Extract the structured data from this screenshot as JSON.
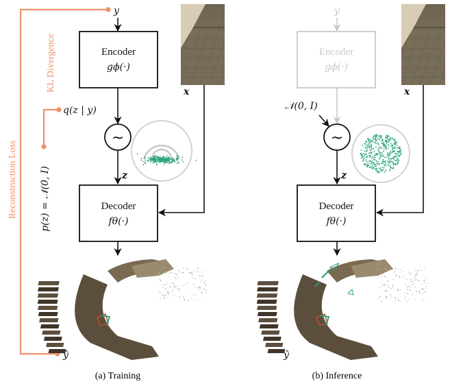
{
  "colors": {
    "orange": "#f0906a",
    "gray": "#c8c8c8",
    "green": "#2aa37a",
    "black": "#111111"
  },
  "training": {
    "caption": "(a) Training",
    "encoder_title": "Encoder",
    "encoder_func": "gϕ(·)",
    "decoder_title": "Decoder",
    "decoder_func": "fθ(·)",
    "y_label": "y",
    "x_label": "x",
    "z_label": "z",
    "posterior_label": "q(z | y)",
    "prior_label": "p(z) = 𝒩(0, I)",
    "kl_label": "KL Divergence",
    "recon_label": "Reconstruction Loss",
    "yhat_label": "ŷ",
    "sampler_symbol": "~"
  },
  "inference": {
    "caption": "(b) Inference",
    "encoder_title": "Encoder",
    "encoder_func": "gϕ(·)",
    "decoder_title": "Decoder",
    "decoder_func": "fθ(·)",
    "y_label": "y",
    "x_label": "x",
    "z_label": "z",
    "prior_label": "𝒩(0, I)",
    "yhat_label": "ŷ",
    "sampler_symbol": "~"
  }
}
